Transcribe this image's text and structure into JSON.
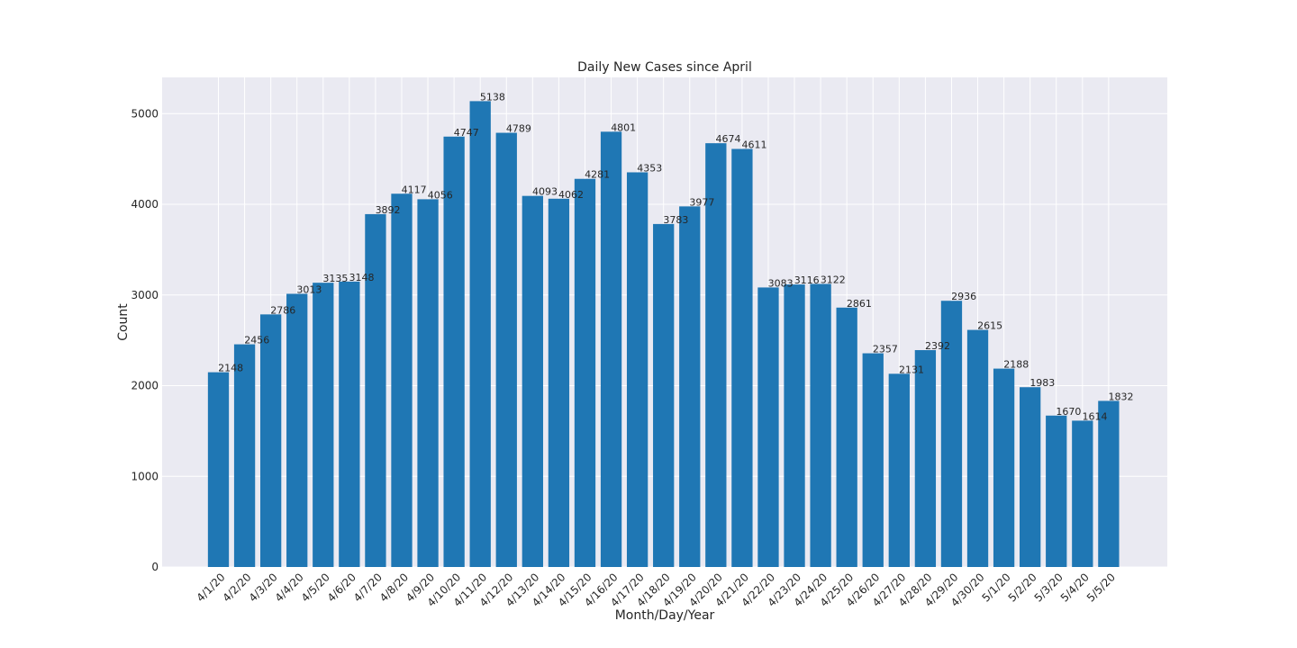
{
  "chart_data": {
    "type": "bar",
    "title": "Daily New Cases since April",
    "xlabel": "Month/Day/Year",
    "ylabel": "Count",
    "categories": [
      "4/1/20",
      "4/2/20",
      "4/3/20",
      "4/4/20",
      "4/5/20",
      "4/6/20",
      "4/7/20",
      "4/8/20",
      "4/9/20",
      "4/10/20",
      "4/11/20",
      "4/12/20",
      "4/13/20",
      "4/14/20",
      "4/15/20",
      "4/16/20",
      "4/17/20",
      "4/18/20",
      "4/19/20",
      "4/20/20",
      "4/21/20",
      "4/22/20",
      "4/23/20",
      "4/24/20",
      "4/25/20",
      "4/26/20",
      "4/27/20",
      "4/28/20",
      "4/29/20",
      "4/30/20",
      "5/1/20",
      "5/2/20",
      "5/3/20",
      "5/4/20",
      "5/5/20"
    ],
    "values": [
      2148,
      2456,
      2786,
      3013,
      3135,
      3148,
      3892,
      4117,
      4056,
      4747,
      5138,
      4789,
      4093,
      4062,
      4281,
      4801,
      4353,
      3783,
      3977,
      4674,
      4611,
      3083,
      3116,
      3122,
      2861,
      2357,
      2131,
      2392,
      2936,
      2615,
      2188,
      1983,
      1670,
      1614,
      1832
    ],
    "ylim": [
      0,
      5400
    ],
    "yticks": [
      0,
      1000,
      2000,
      3000,
      4000,
      5000
    ],
    "grid": true,
    "bar_color": "#1f77b4",
    "background_color": "#eaeaf2",
    "grid_color": "#ffffff"
  }
}
